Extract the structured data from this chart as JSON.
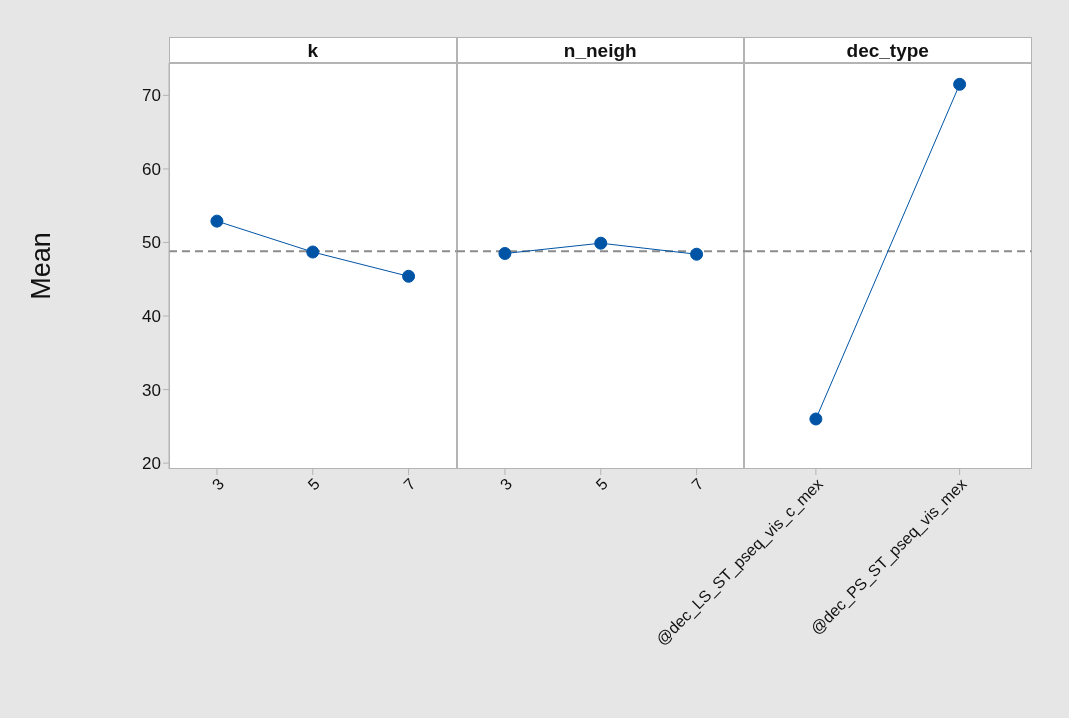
{
  "chart_data": [
    {
      "type": "line",
      "title": "k",
      "ylabel": "Mean",
      "categories": [
        "3",
        "5",
        "7"
      ],
      "series": [
        {
          "color": "#0054a6",
          "values": [
            52.9,
            48.7,
            45.4
          ]
        }
      ],
      "ylim": [
        19.2,
        74.4
      ],
      "yticks": [
        20,
        30,
        40,
        50,
        60,
        70
      ],
      "marker": "circle",
      "ref_lines": [
        {
          "axis": "y",
          "value": 48.8,
          "line_style": "dashed",
          "color": "#8c8c8c"
        }
      ]
    },
    {
      "type": "line",
      "title": "n_neigh",
      "categories": [
        "3",
        "5",
        "7"
      ],
      "series": [
        {
          "color": "#0054a6",
          "values": [
            48.5,
            49.9,
            48.4
          ]
        }
      ],
      "ylim": [
        19.2,
        74.4
      ],
      "yticks": [
        20,
        30,
        40,
        50,
        60,
        70
      ],
      "tick_labels": "x",
      "marker": "circle",
      "ref_lines": [
        {
          "axis": "y",
          "value": 48.8,
          "line_style": "dashed",
          "color": "#8c8c8c"
        }
      ]
    },
    {
      "type": "line",
      "title": "dec_type",
      "categories": [
        "@dec_LS_ST_pseq_vis_c_mex",
        "@dec_PS_ST_pseq_vis_mex"
      ],
      "series": [
        {
          "color": "#0054a6",
          "values": [
            26.0,
            71.5
          ]
        }
      ],
      "ylim": [
        19.2,
        74.4
      ],
      "yticks": [
        20,
        30,
        40,
        50,
        60,
        70
      ],
      "tick_labels": "x",
      "marker": "circle",
      "ref_lines": [
        {
          "axis": "y",
          "value": 48.8,
          "line_style": "dashed",
          "color": "#8c8c8c"
        }
      ]
    }
  ]
}
